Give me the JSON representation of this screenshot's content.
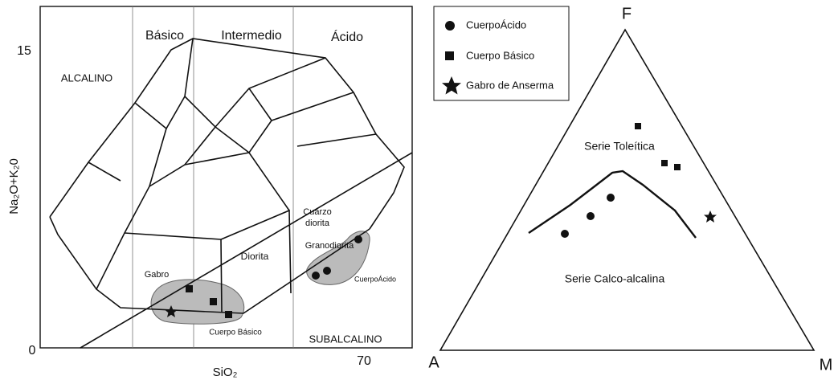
{
  "tas_diagram": {
    "y_axis_label": "Na₂O+K₂0",
    "x_axis_label": "SiO₂",
    "y_ticks": [
      15,
      0
    ],
    "x_ticks": [
      70
    ],
    "columns": [
      "Básico",
      "Intermedio",
      "Ácido"
    ],
    "series_labels": [
      "ALCALINO",
      "SUBALCALINO"
    ],
    "fields": [
      "Cuarzo",
      "diorita",
      "Granodiorita",
      "Diorita",
      "Gabro"
    ],
    "groups": [
      "Cuerpo Básico",
      "CuerpoÁcido"
    ]
  },
  "afm_diagram": {
    "vertices": [
      "F",
      "A",
      "M"
    ],
    "series_labels": [
      "Serie Toleítica",
      "Serie Calco-alcalina"
    ]
  },
  "legend": [
    "CuerpoÁcido",
    "Cuerpo Básico",
    "Gabro de Anserma"
  ]
}
